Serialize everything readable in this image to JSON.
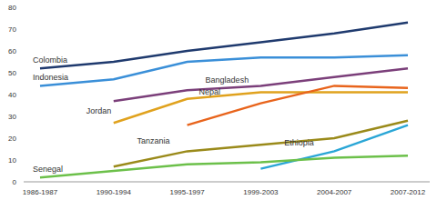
{
  "chart_data": {
    "type": "line",
    "categories": [
      "1986-1987",
      "1990-1994",
      "1995-1997",
      "1999-2003",
      "2004-2007",
      "2007-2012"
    ],
    "series": [
      {
        "name": "Colombia",
        "color": "#1f3a6e",
        "values": [
          52,
          55,
          60,
          64,
          68,
          73
        ]
      },
      {
        "name": "Indonesia",
        "color": "#3a8fd8",
        "values": [
          44,
          47,
          55,
          57,
          57,
          58
        ]
      },
      {
        "name": "Bangladesh",
        "color": "#7b3f7a",
        "values": [
          null,
          37,
          42,
          44,
          48,
          52
        ]
      },
      {
        "name": "Jordan",
        "color": "#e0a21e",
        "values": [
          null,
          27,
          38,
          41,
          41,
          41
        ]
      },
      {
        "name": "Nepal",
        "color": "#e8641c",
        "values": [
          null,
          null,
          26,
          36,
          44,
          43
        ]
      },
      {
        "name": "Tanzania",
        "color": "#9a8a1a",
        "values": [
          null,
          7,
          14,
          17,
          20,
          28
        ]
      },
      {
        "name": "Ethiopia",
        "color": "#2aa6d6",
        "values": [
          null,
          null,
          null,
          6,
          14,
          26
        ]
      },
      {
        "name": "Senegal",
        "color": "#6cc04a",
        "values": [
          2,
          5,
          8,
          9,
          11,
          12
        ]
      }
    ],
    "ylim": [
      0,
      80
    ],
    "yticks": [
      0,
      10,
      20,
      30,
      40,
      50,
      60,
      70,
      80
    ],
    "grid": false,
    "legend": false
  }
}
